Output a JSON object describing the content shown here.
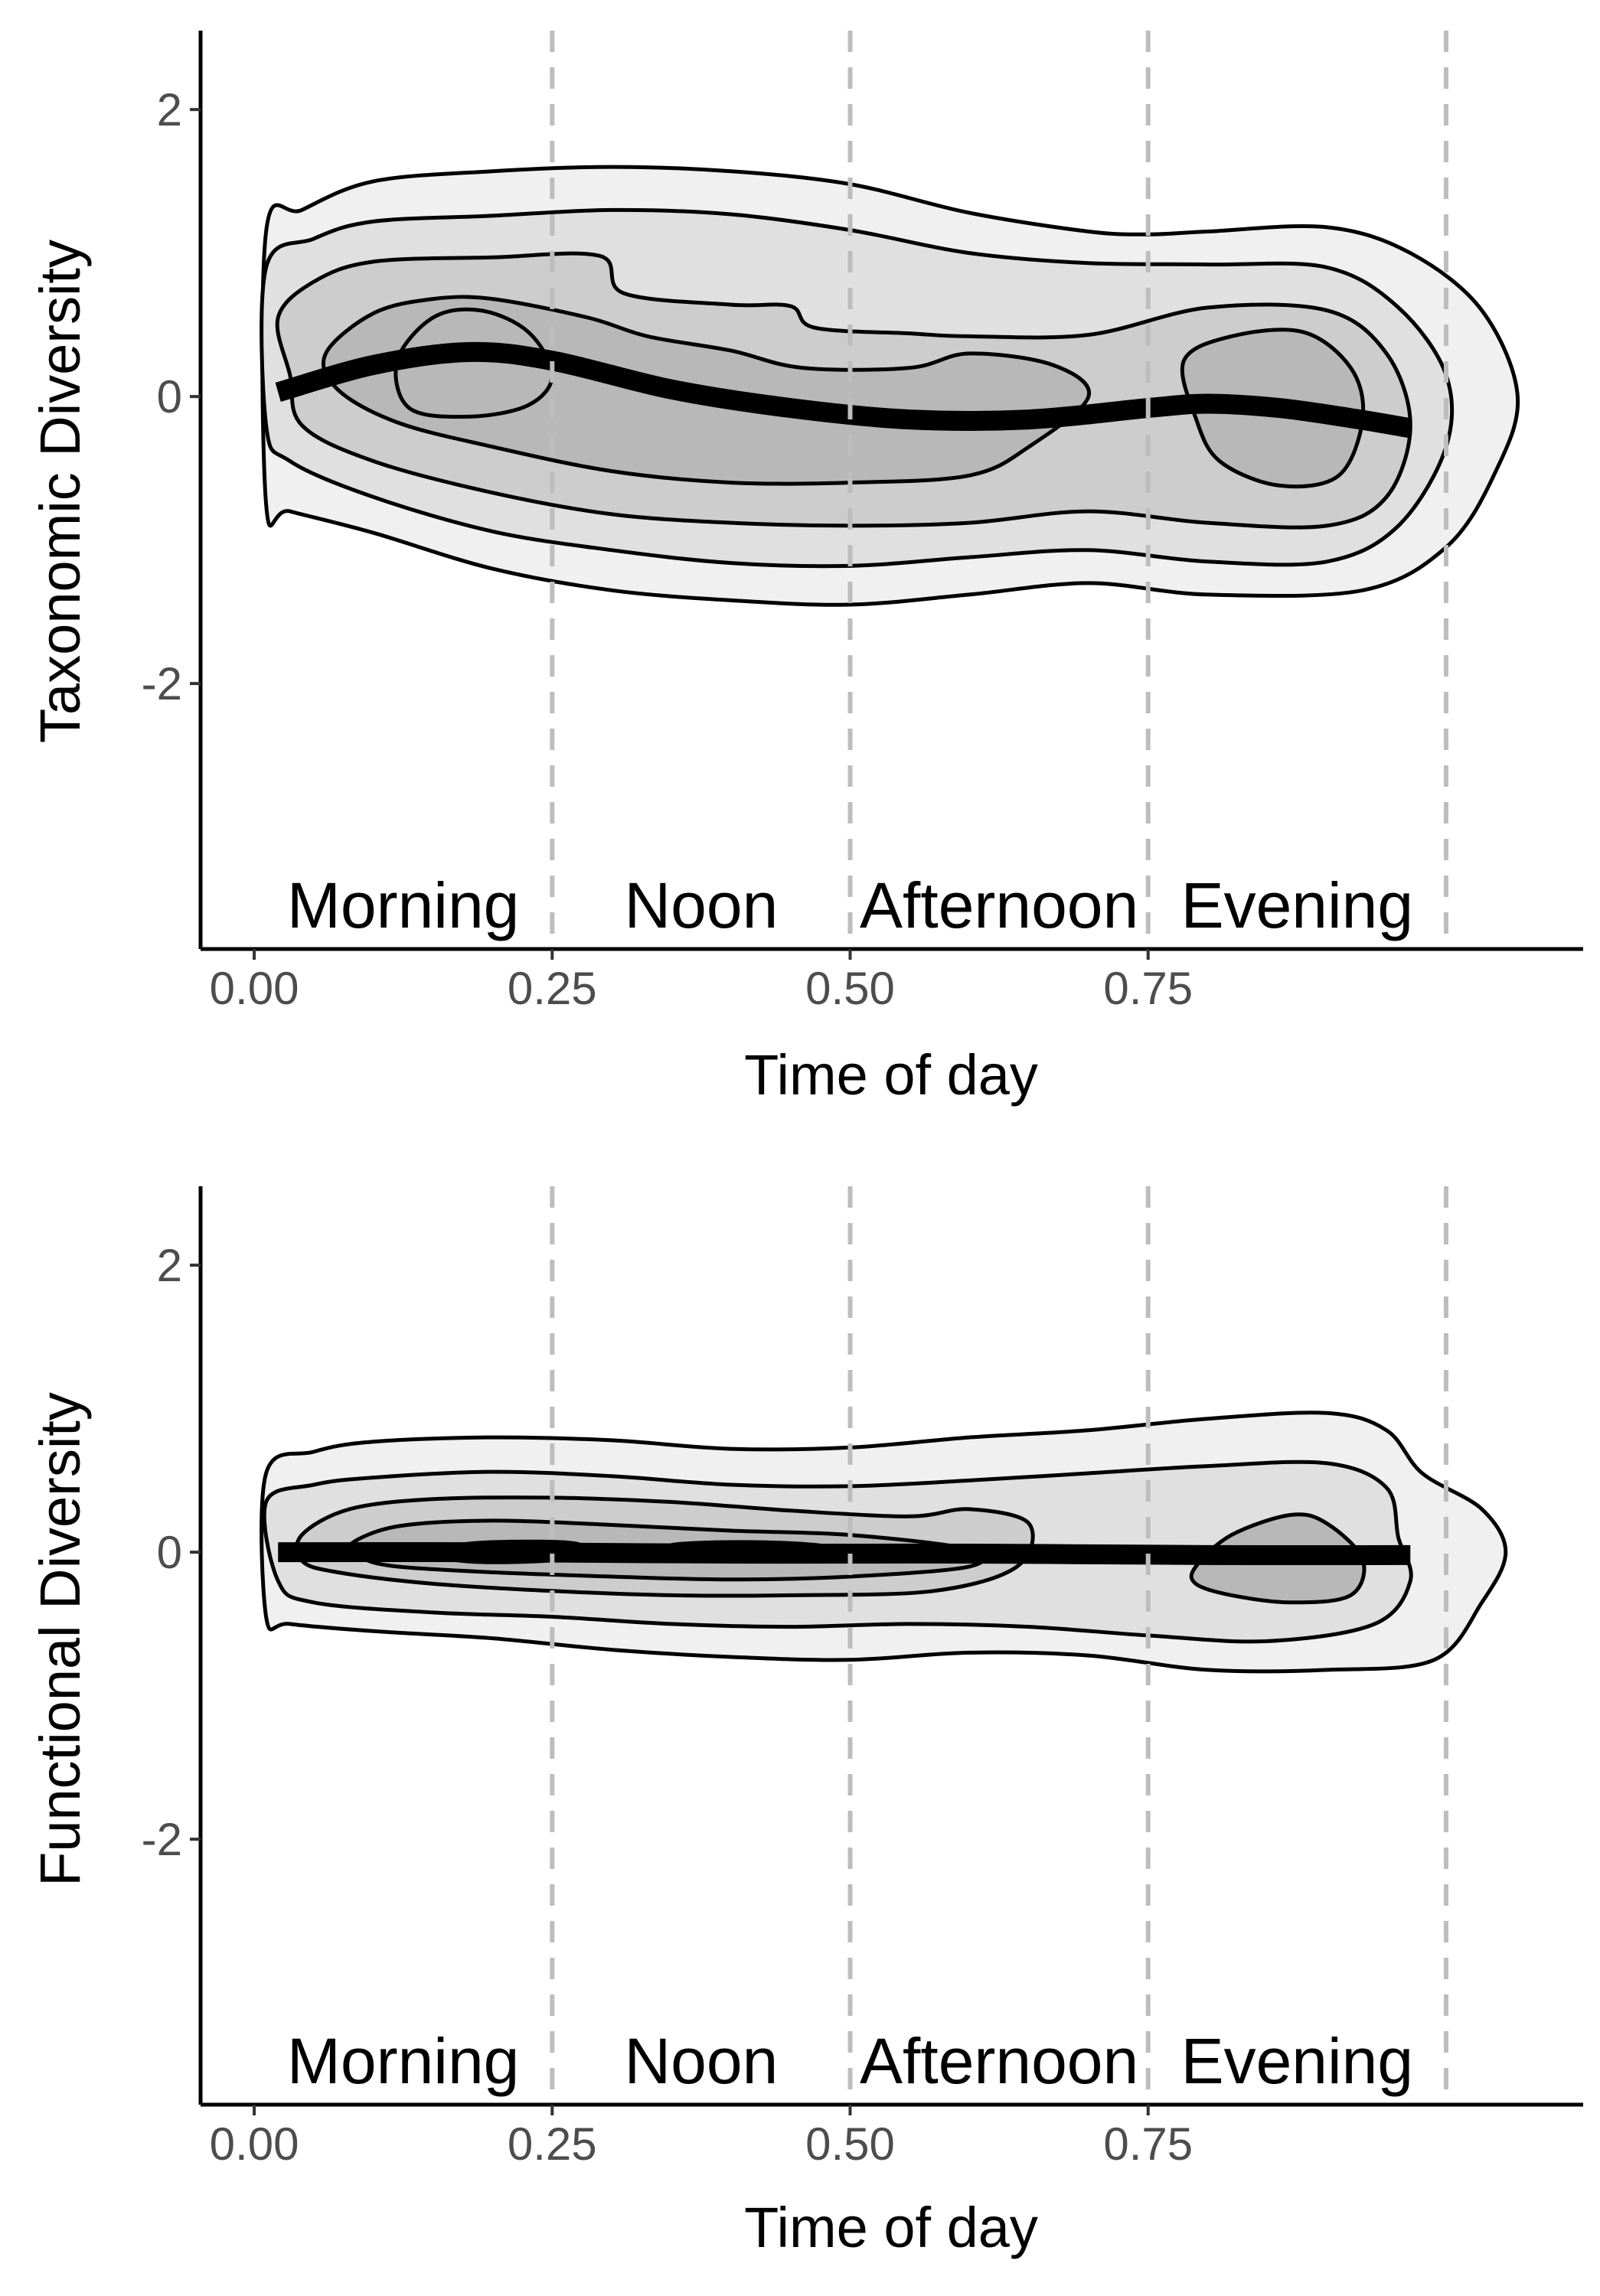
{
  "chart_data": [
    {
      "type": "density-contour",
      "panel": "top",
      "xlabel": "Time of day",
      "ylabel": "Taxonomic Diversity",
      "xlim": [
        -0.045,
        1.115
      ],
      "ylim": [
        -3.85,
        2.55
      ],
      "x_ticks": [
        0.0,
        0.25,
        0.5,
        0.75
      ],
      "x_tick_labels": [
        "0.00",
        "0.25",
        "0.50",
        "0.75"
      ],
      "y_ticks": [
        2,
        0,
        -2
      ],
      "y_tick_labels": [
        "2",
        "0",
        "-2"
      ],
      "vlines": [
        0.25,
        0.5,
        0.75,
        1.0
      ],
      "period_labels": [
        {
          "text": "Morning",
          "x": 0.125
        },
        {
          "text": "Noon",
          "x": 0.375
        },
        {
          "text": "Afternoon",
          "x": 0.625
        },
        {
          "text": "Evening",
          "x": 0.875
        }
      ],
      "period_label_y": -3.55,
      "contour_fills": [
        "#f0f0f0",
        "#e0e0e0",
        "#cdcdcd",
        "#b8b8b8"
      ],
      "contours": [
        [
          [
            0.01,
            1.15
          ],
          [
            0.04,
            1.3
          ],
          [
            0.1,
            1.5
          ],
          [
            0.2,
            1.57
          ],
          [
            0.3,
            1.6
          ],
          [
            0.4,
            1.57
          ],
          [
            0.5,
            1.48
          ],
          [
            0.6,
            1.28
          ],
          [
            0.7,
            1.15
          ],
          [
            0.75,
            1.13
          ],
          [
            0.8,
            1.15
          ],
          [
            0.9,
            1.18
          ],
          [
            0.97,
            1.0
          ],
          [
            1.03,
            0.6
          ],
          [
            1.06,
            0.0
          ],
          [
            1.04,
            -0.55
          ],
          [
            1.0,
            -1.05
          ],
          [
            0.93,
            -1.35
          ],
          [
            0.8,
            -1.38
          ],
          [
            0.7,
            -1.3
          ],
          [
            0.6,
            -1.38
          ],
          [
            0.5,
            -1.45
          ],
          [
            0.4,
            -1.42
          ],
          [
            0.3,
            -1.35
          ],
          [
            0.2,
            -1.2
          ],
          [
            0.1,
            -0.95
          ],
          [
            0.03,
            -0.8
          ],
          [
            0.01,
            -0.75
          ]
        ],
        [
          [
            0.01,
            0.9
          ],
          [
            0.05,
            1.1
          ],
          [
            0.1,
            1.22
          ],
          [
            0.2,
            1.26
          ],
          [
            0.3,
            1.3
          ],
          [
            0.4,
            1.27
          ],
          [
            0.5,
            1.16
          ],
          [
            0.6,
            1.0
          ],
          [
            0.7,
            0.93
          ],
          [
            0.8,
            0.92
          ],
          [
            0.9,
            0.9
          ],
          [
            0.96,
            0.62
          ],
          [
            1.0,
            0.15
          ],
          [
            1.0,
            -0.35
          ],
          [
            0.96,
            -0.9
          ],
          [
            0.9,
            -1.15
          ],
          [
            0.8,
            -1.15
          ],
          [
            0.7,
            -1.07
          ],
          [
            0.6,
            -1.12
          ],
          [
            0.5,
            -1.18
          ],
          [
            0.4,
            -1.16
          ],
          [
            0.3,
            -1.07
          ],
          [
            0.2,
            -0.94
          ],
          [
            0.1,
            -0.7
          ],
          [
            0.03,
            -0.45
          ],
          [
            0.01,
            -0.2
          ]
        ],
        [
          [
            0.02,
            0.55
          ],
          [
            0.05,
            0.8
          ],
          [
            0.1,
            0.94
          ],
          [
            0.2,
            0.97
          ],
          [
            0.29,
            0.98
          ],
          [
            0.31,
            0.72
          ],
          [
            0.4,
            0.64
          ],
          [
            0.45,
            0.63
          ],
          [
            0.47,
            0.48
          ],
          [
            0.55,
            0.44
          ],
          [
            0.6,
            0.42
          ],
          [
            0.7,
            0.43
          ],
          [
            0.8,
            0.62
          ],
          [
            0.9,
            0.6
          ],
          [
            0.95,
            0.3
          ],
          [
            0.97,
            -0.2
          ],
          [
            0.95,
            -0.7
          ],
          [
            0.9,
            -0.9
          ],
          [
            0.8,
            -0.88
          ],
          [
            0.7,
            -0.8
          ],
          [
            0.6,
            -0.88
          ],
          [
            0.5,
            -0.9
          ],
          [
            0.4,
            -0.88
          ],
          [
            0.3,
            -0.82
          ],
          [
            0.2,
            -0.67
          ],
          [
            0.1,
            -0.45
          ],
          [
            0.04,
            -0.2
          ],
          [
            0.03,
            0.15
          ]
        ],
        [
          [
            0.06,
            0.3
          ],
          [
            0.1,
            0.58
          ],
          [
            0.15,
            0.68
          ],
          [
            0.2,
            0.68
          ],
          [
            0.28,
            0.55
          ],
          [
            0.33,
            0.42
          ],
          [
            0.4,
            0.32
          ],
          [
            0.46,
            0.2
          ],
          [
            0.55,
            0.2
          ],
          [
            0.6,
            0.3
          ],
          [
            0.67,
            0.22
          ],
          [
            0.7,
            0.0
          ],
          [
            0.65,
            -0.35
          ],
          [
            0.6,
            -0.55
          ],
          [
            0.5,
            -0.6
          ],
          [
            0.4,
            -0.6
          ],
          [
            0.3,
            -0.52
          ],
          [
            0.2,
            -0.35
          ],
          [
            0.12,
            -0.18
          ],
          [
            0.07,
            0.05
          ]
        ],
        [
          [
            0.12,
            0.25
          ],
          [
            0.15,
            0.55
          ],
          [
            0.19,
            0.6
          ],
          [
            0.23,
            0.45
          ],
          [
            0.25,
            0.15
          ],
          [
            0.23,
            -0.06
          ],
          [
            0.18,
            -0.14
          ],
          [
            0.13,
            -0.08
          ]
        ],
        [
          [
            0.78,
            0.25
          ],
          [
            0.82,
            0.42
          ],
          [
            0.88,
            0.45
          ],
          [
            0.92,
            0.2
          ],
          [
            0.93,
            -0.15
          ],
          [
            0.91,
            -0.55
          ],
          [
            0.86,
            -0.62
          ],
          [
            0.81,
            -0.45
          ],
          [
            0.79,
            -0.15
          ]
        ]
      ],
      "trend": {
        "x": [
          0.02,
          0.1,
          0.18,
          0.25,
          0.35,
          0.45,
          0.55,
          0.65,
          0.75,
          0.8,
          0.86,
          0.92,
          0.97
        ],
        "y": [
          0.03,
          0.22,
          0.31,
          0.25,
          0.05,
          -0.08,
          -0.16,
          -0.16,
          -0.08,
          -0.05,
          -0.08,
          -0.15,
          -0.22
        ]
      }
    },
    {
      "type": "density-contour",
      "panel": "bottom",
      "xlabel": "Time of day",
      "ylabel": "Functional Diversity",
      "xlim": [
        -0.045,
        1.115
      ],
      "ylim": [
        -3.85,
        2.55
      ],
      "x_ticks": [
        0.0,
        0.25,
        0.5,
        0.75
      ],
      "x_tick_labels": [
        "0.00",
        "0.25",
        "0.50",
        "0.75"
      ],
      "y_ticks": [
        2,
        0,
        -2
      ],
      "y_tick_labels": [
        "2",
        "0",
        "-2"
      ],
      "vlines": [
        0.25,
        0.5,
        0.75,
        1.0
      ],
      "period_labels": [
        {
          "text": "Morning",
          "x": 0.125
        },
        {
          "text": "Noon",
          "x": 0.375
        },
        {
          "text": "Afternoon",
          "x": 0.625
        },
        {
          "text": "Evening",
          "x": 0.875
        }
      ],
      "period_label_y": -3.55,
      "contour_fills": [
        "#f0f0f0",
        "#e0e0e0",
        "#cdcdcd",
        "#b8b8b8"
      ],
      "contours": [
        [
          [
            0.01,
            0.55
          ],
          [
            0.05,
            0.7
          ],
          [
            0.1,
            0.77
          ],
          [
            0.2,
            0.8
          ],
          [
            0.3,
            0.78
          ],
          [
            0.4,
            0.72
          ],
          [
            0.5,
            0.73
          ],
          [
            0.6,
            0.8
          ],
          [
            0.7,
            0.85
          ],
          [
            0.8,
            0.93
          ],
          [
            0.9,
            0.97
          ],
          [
            0.95,
            0.85
          ],
          [
            0.98,
            0.55
          ],
          [
            1.03,
            0.3
          ],
          [
            1.05,
            0.0
          ],
          [
            1.03,
            -0.35
          ],
          [
            0.99,
            -0.75
          ],
          [
            0.9,
            -0.82
          ],
          [
            0.8,
            -0.82
          ],
          [
            0.7,
            -0.72
          ],
          [
            0.6,
            -0.7
          ],
          [
            0.5,
            -0.75
          ],
          [
            0.4,
            -0.73
          ],
          [
            0.3,
            -0.68
          ],
          [
            0.2,
            -0.6
          ],
          [
            0.1,
            -0.55
          ],
          [
            0.03,
            -0.5
          ],
          [
            0.01,
            -0.45
          ]
        ],
        [
          [
            0.01,
            0.35
          ],
          [
            0.05,
            0.47
          ],
          [
            0.1,
            0.52
          ],
          [
            0.2,
            0.56
          ],
          [
            0.3,
            0.53
          ],
          [
            0.4,
            0.47
          ],
          [
            0.5,
            0.46
          ],
          [
            0.6,
            0.5
          ],
          [
            0.7,
            0.55
          ],
          [
            0.8,
            0.6
          ],
          [
            0.9,
            0.62
          ],
          [
            0.95,
            0.45
          ],
          [
            0.96,
            0.1
          ],
          [
            0.97,
            -0.2
          ],
          [
            0.94,
            -0.5
          ],
          [
            0.85,
            -0.62
          ],
          [
            0.75,
            -0.58
          ],
          [
            0.65,
            -0.52
          ],
          [
            0.55,
            -0.5
          ],
          [
            0.45,
            -0.52
          ],
          [
            0.35,
            -0.5
          ],
          [
            0.25,
            -0.45
          ],
          [
            0.15,
            -0.42
          ],
          [
            0.05,
            -0.35
          ],
          [
            0.02,
            -0.2
          ]
        ],
        [
          [
            0.04,
            0.12
          ],
          [
            0.08,
            0.3
          ],
          [
            0.15,
            0.37
          ],
          [
            0.25,
            0.38
          ],
          [
            0.35,
            0.35
          ],
          [
            0.45,
            0.29
          ],
          [
            0.55,
            0.25
          ],
          [
            0.6,
            0.3
          ],
          [
            0.65,
            0.2
          ],
          [
            0.64,
            -0.1
          ],
          [
            0.57,
            -0.27
          ],
          [
            0.45,
            -0.3
          ],
          [
            0.35,
            -0.3
          ],
          [
            0.25,
            -0.27
          ],
          [
            0.15,
            -0.22
          ],
          [
            0.07,
            -0.14
          ],
          [
            0.04,
            -0.06
          ]
        ],
        [
          [
            0.08,
            0.05
          ],
          [
            0.12,
            0.18
          ],
          [
            0.2,
            0.22
          ],
          [
            0.3,
            0.19
          ],
          [
            0.4,
            0.15
          ],
          [
            0.5,
            0.12
          ],
          [
            0.6,
            0.02
          ],
          [
            0.6,
            -0.1
          ],
          [
            0.5,
            -0.17
          ],
          [
            0.4,
            -0.19
          ],
          [
            0.3,
            -0.17
          ],
          [
            0.2,
            -0.14
          ],
          [
            0.12,
            -0.1
          ],
          [
            0.09,
            -0.04
          ]
        ],
        [
          [
            0.79,
            -0.1
          ],
          [
            0.82,
            0.12
          ],
          [
            0.87,
            0.26
          ],
          [
            0.9,
            0.2
          ],
          [
            0.93,
            -0.05
          ],
          [
            0.92,
            -0.3
          ],
          [
            0.87,
            -0.35
          ],
          [
            0.82,
            -0.3
          ],
          [
            0.79,
            -0.22
          ]
        ],
        [
          [
            0.16,
            0.03
          ],
          [
            0.2,
            0.07
          ],
          [
            0.27,
            0.06
          ],
          [
            0.27,
            -0.04
          ],
          [
            0.2,
            -0.07
          ],
          [
            0.16,
            -0.04
          ]
        ],
        [
          [
            0.35,
            0.05
          ],
          [
            0.42,
            0.07
          ],
          [
            0.48,
            0.04
          ],
          [
            0.48,
            -0.03
          ],
          [
            0.42,
            -0.06
          ],
          [
            0.35,
            -0.04
          ]
        ]
      ],
      "trend": {
        "x": [
          0.02,
          0.2,
          0.4,
          0.6,
          0.8,
          0.97
        ],
        "y": [
          0.0,
          0.0,
          -0.01,
          -0.01,
          -0.02,
          -0.02
        ]
      }
    }
  ]
}
